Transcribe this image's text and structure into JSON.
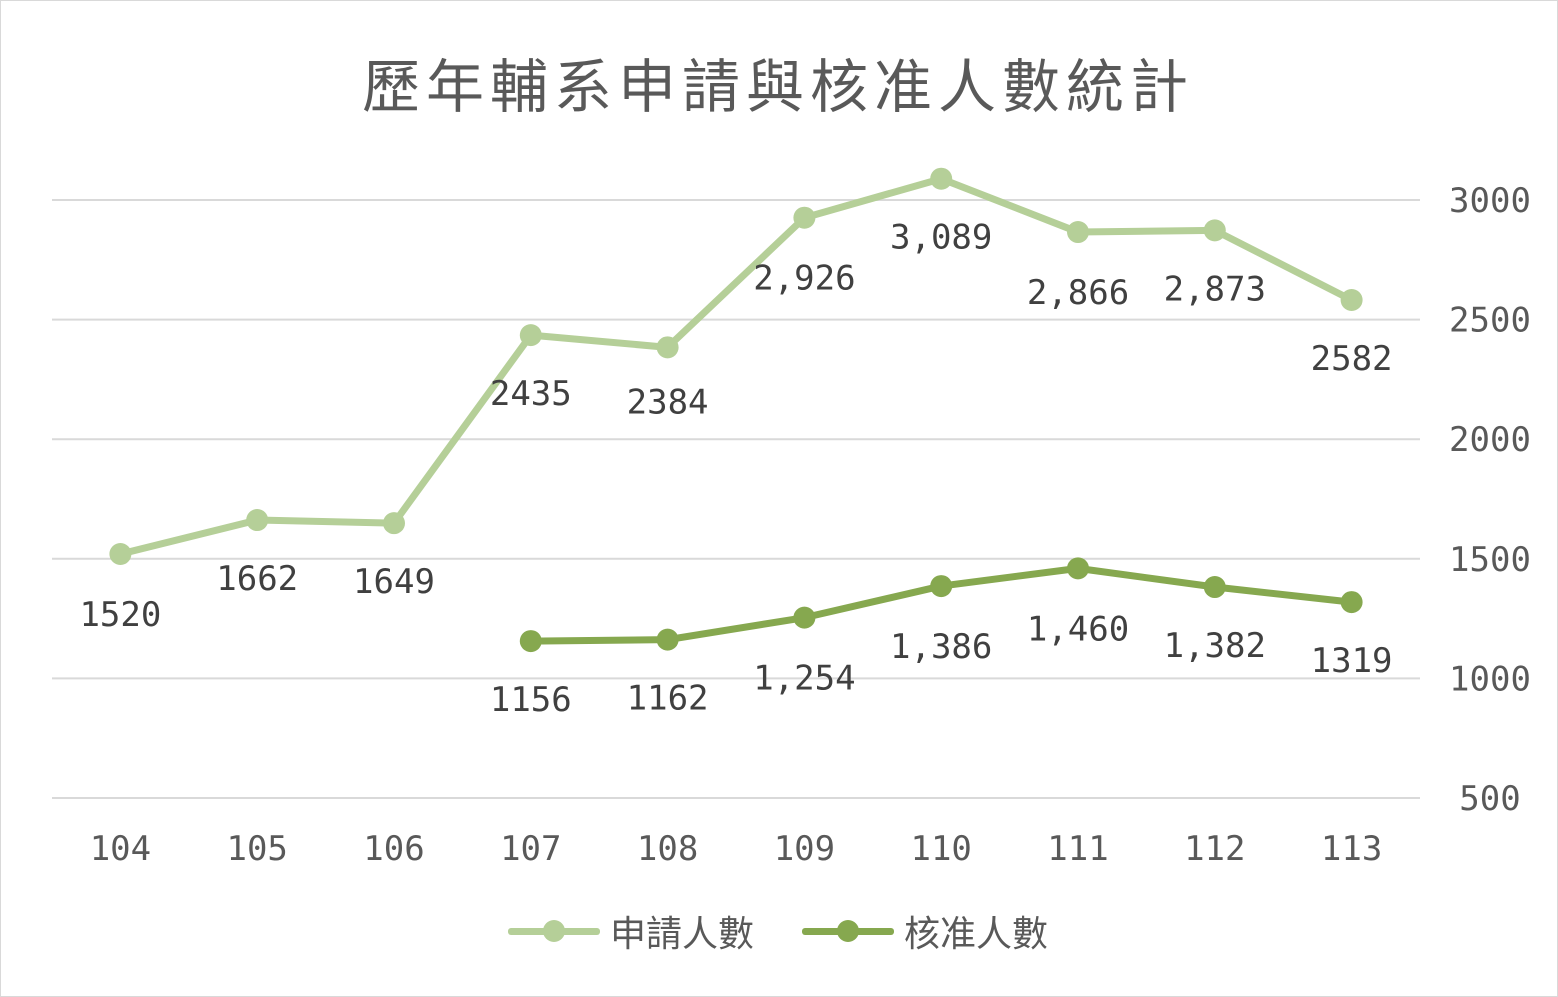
{
  "chart_data": {
    "type": "line",
    "title": "歷年輔系申請與核准人數統計",
    "categories": [
      "104",
      "105",
      "106",
      "107",
      "108",
      "109",
      "110",
      "111",
      "112",
      "113"
    ],
    "y_axis": {
      "position": "right",
      "ticks": [
        "500",
        "1000",
        "1500",
        "2000",
        "2500",
        "3000"
      ],
      "range": [
        500,
        3000
      ]
    },
    "grid": true,
    "legend_position": "bottom",
    "series": [
      {
        "name": "申請人數",
        "color": "#b5cf98",
        "values": [
          1520,
          1662,
          1649,
          2435,
          2384,
          2926,
          3089,
          2866,
          2873,
          2582
        ],
        "labels": [
          "1520",
          "1662",
          "1649",
          "2435",
          "2384",
          "2,926",
          "3,089",
          "2,866",
          "2,873",
          "2582"
        ]
      },
      {
        "name": "核准人數",
        "color": "#86a84f",
        "values": [
          null,
          null,
          null,
          1156,
          1162,
          1254,
          1386,
          1460,
          1382,
          1319
        ],
        "labels": [
          null,
          null,
          null,
          "1156",
          "1162",
          "1,254",
          "1,386",
          "1,460",
          "1,382",
          "1319"
        ]
      }
    ]
  }
}
